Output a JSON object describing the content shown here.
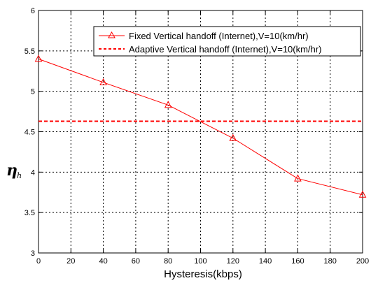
{
  "chart_data": {
    "type": "line",
    "title": "",
    "xlabel": "Hysteresis(kbps)",
    "ylabel": "η",
    "ylabel_subscript": "h",
    "xlim": [
      0,
      200
    ],
    "ylim": [
      3,
      6
    ],
    "xticks": [
      "0",
      "20",
      "40",
      "60",
      "80",
      "100",
      "120",
      "140",
      "160",
      "180",
      "200"
    ],
    "yticks": [
      "3",
      "3.5",
      "4",
      "4.5",
      "5",
      "5.5",
      "6"
    ],
    "grid": true,
    "legend_position": "top-right",
    "series": [
      {
        "name": "Fixed Vertical handoff (Internet),V=10(km/hr)",
        "style": "solid",
        "marker": "triangle",
        "color": "#ff0000",
        "x": [
          0,
          40,
          80,
          120,
          160,
          200
        ],
        "y": [
          5.4,
          5.11,
          4.83,
          4.42,
          3.92,
          3.72
        ]
      },
      {
        "name": "Adaptive Vertical handoff (Internet),V=10(km/hr)",
        "style": "dashed",
        "marker": "none",
        "color": "#ff0000",
        "x": [
          0,
          200
        ],
        "y": [
          4.63,
          4.63
        ]
      }
    ]
  }
}
